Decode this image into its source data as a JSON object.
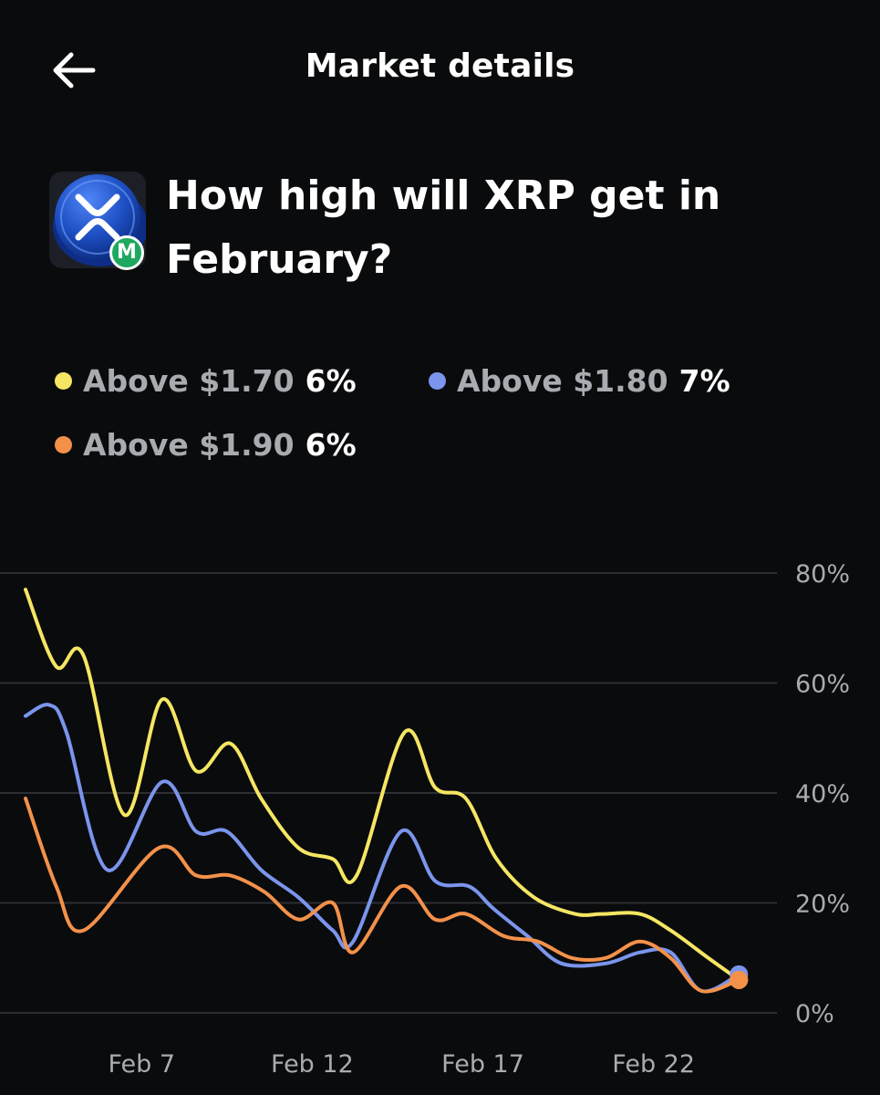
{
  "header": {
    "title": "Market details",
    "back_icon": "arrow-left-icon"
  },
  "market": {
    "question": "How high will XRP get in February?",
    "logo_icon": "xrp-coin-icon",
    "badge_text": "M"
  },
  "legend": [
    {
      "label": "Above $1.70",
      "value": "6%",
      "color": "#f5e663"
    },
    {
      "label": "Above $1.80",
      "value": "7%",
      "color": "#7b95ec"
    },
    {
      "label": "Above $1.90",
      "value": "6%",
      "color": "#f3914a"
    }
  ],
  "chart_data": {
    "type": "line",
    "x_ticks": [
      "Feb 7",
      "Feb 12",
      "Feb 17",
      "Feb 22"
    ],
    "y_ticks": [
      "0%",
      "20%",
      "40%",
      "60%",
      "80%"
    ],
    "ylim": [
      0,
      80
    ],
    "xlim": [
      3.6,
      24.6
    ],
    "grid": true,
    "series": [
      {
        "name": "Above $1.70",
        "color": "#f5e663",
        "x": [
          3.6,
          4.5,
          5.3,
          6.5,
          7.6,
          8.6,
          9.6,
          10.5,
          11.6,
          12.6,
          13.3,
          14.7,
          15.6,
          16.5,
          17.4,
          18.5,
          19.7,
          20.5,
          21.6,
          22.5,
          23.6,
          24.5
        ],
        "y": [
          77,
          63,
          65,
          36,
          57,
          44,
          49,
          39,
          30,
          28,
          25,
          51,
          41,
          39,
          28,
          21,
          18,
          18,
          18,
          15,
          10,
          6
        ]
      },
      {
        "name": "Above $1.80",
        "color": "#7b95ec",
        "x": [
          3.6,
          4.3,
          4.8,
          6.0,
          7.6,
          8.6,
          9.5,
          10.5,
          11.6,
          12.6,
          13.2,
          14.6,
          15.6,
          16.6,
          17.3,
          18.3,
          19.3,
          20.6,
          21.6,
          22.5,
          23.4,
          24.5
        ],
        "y": [
          54,
          56,
          51,
          26,
          42,
          33,
          33,
          26,
          21,
          15,
          13,
          33,
          24,
          23,
          19,
          14,
          9,
          9,
          11,
          11,
          4,
          7
        ]
      },
      {
        "name": "Above $1.90",
        "color": "#f3914a",
        "x": [
          3.6,
          4.5,
          5.3,
          7.5,
          8.6,
          9.6,
          10.6,
          11.6,
          12.6,
          13.2,
          14.6,
          15.6,
          16.5,
          17.6,
          18.6,
          19.6,
          20.6,
          21.6,
          22.5,
          23.4,
          24.5
        ],
        "y": [
          39,
          23,
          15,
          30,
          25,
          25,
          22,
          17,
          20,
          11,
          23,
          17,
          18,
          14,
          13,
          10,
          10,
          13,
          10,
          4,
          6
        ]
      }
    ]
  }
}
